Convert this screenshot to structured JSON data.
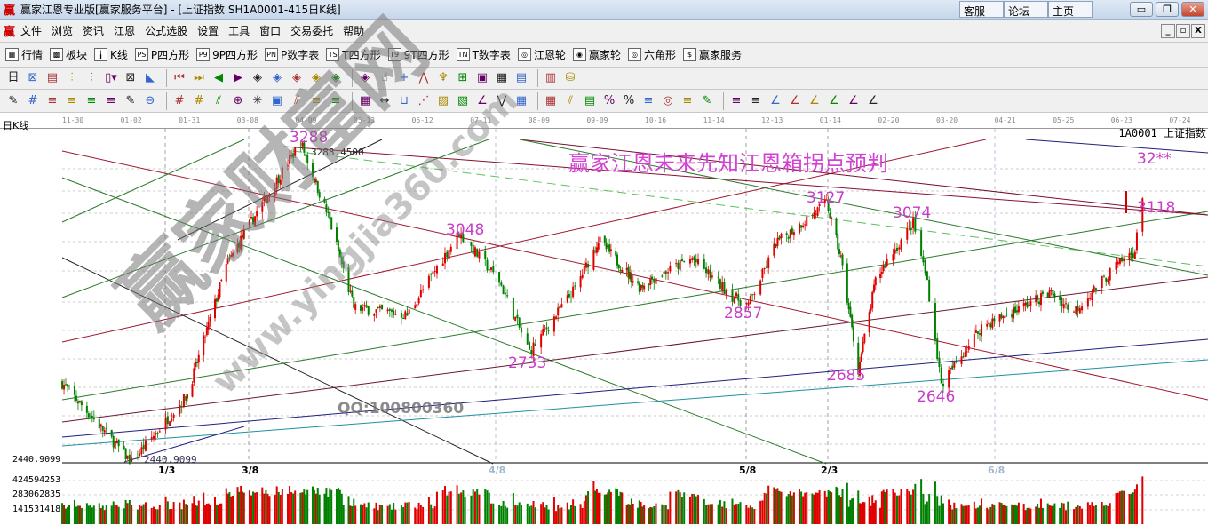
{
  "window": {
    "logo": "赢",
    "title": "赢家江恩专业版[赢家服务平台] - [上证指数  SH1A0001-415日K线]",
    "links": [
      "客服",
      "论坛",
      "主页"
    ],
    "controls": [
      "minimize",
      "restore",
      "close"
    ]
  },
  "menu": {
    "logo": "赢",
    "items": [
      "文件",
      "浏览",
      "资讯",
      "江恩",
      "公式选股",
      "设置",
      "工具",
      "窗口",
      "交易委托",
      "帮助"
    ],
    "mdi_controls": [
      "_",
      "▫",
      "X"
    ]
  },
  "toolbar1": [
    {
      "icon": "grid-icon",
      "glyph": "▦",
      "label": "行情"
    },
    {
      "icon": "blocks-icon",
      "glyph": "▩",
      "label": "板块"
    },
    {
      "icon": "candles-icon",
      "glyph": "╽",
      "label": "K线"
    },
    {
      "icon": "ps-icon",
      "glyph": "PS",
      "label": "P四方形"
    },
    {
      "icon": "p9-icon",
      "glyph": "P9",
      "label": "9P四方形"
    },
    {
      "icon": "pn-icon",
      "glyph": "PN",
      "label": "P数字表"
    },
    {
      "icon": "ts-icon",
      "glyph": "TS",
      "label": "T四方形"
    },
    {
      "icon": "t9-icon",
      "glyph": "T9",
      "label": "9T四方形"
    },
    {
      "icon": "tn-icon",
      "glyph": "TN",
      "label": "T数字表"
    },
    {
      "icon": "gann-wheel-icon",
      "glyph": "◎",
      "label": "江恩轮"
    },
    {
      "icon": "winner-wheel-icon",
      "glyph": "◉",
      "label": "赢家轮"
    },
    {
      "icon": "hexagon-icon",
      "glyph": "◎",
      "label": "六角形"
    },
    {
      "icon": "dollar-icon",
      "glyph": "$",
      "label": "赢家服务"
    }
  ],
  "toolbar2": [
    "日▾",
    "⊠",
    "▤",
    "⫶",
    "⫶",
    "▯▾",
    "⊠",
    "◣",
    "⏮",
    "⏭",
    "◀",
    "▶",
    "◈",
    "◈",
    "◈",
    "◈",
    "◈",
    "◈",
    "☝",
    "+",
    "⋀",
    "♆",
    "⊞",
    "▣",
    "▦",
    "▤",
    "▥",
    "⛁"
  ],
  "toolbar3": [
    "✎",
    "#",
    "≡",
    "≡",
    "≡",
    "≡",
    "✎",
    "⊖",
    "#",
    "#",
    "⫽",
    "⊕",
    "✳",
    "▣",
    "⫽",
    "≡",
    "≡",
    "▦",
    "↔",
    "⊔",
    "⋰",
    "▨",
    "▧",
    "∠",
    "⋁",
    "▦",
    "▦",
    "⫽",
    "▤",
    "%",
    "%",
    "≡",
    "◎",
    "≡",
    "✎",
    "≡",
    "≡",
    "∠",
    "∠",
    "∠",
    "∠",
    "∠",
    "∠"
  ],
  "chart": {
    "period_label": "日K线",
    "symbol": "1A0001  上证指数",
    "headline": "赢家江恩未来先知江恩箱拐点预判",
    "watermark_main": "赢家财富网",
    "watermark_url": "www.yingjia360.com",
    "qq_text": "QQ:100800360",
    "high_tag": "3288.4500",
    "low_tag": "2440.9099",
    "price_axis_low": "2440.9099",
    "volume_axis": [
      "424594253",
      "283062835",
      "141531418"
    ],
    "date_ticks": [
      "11-30",
      "01-02",
      "01-31",
      "03-08",
      "04-09",
      "05-13",
      "06-12",
      "07-11",
      "08-09",
      "09-09",
      "10-16",
      "11-14",
      "12-13",
      "01-14",
      "02-20",
      "03-20",
      "04-21",
      "05-25",
      "06-23",
      "07-24"
    ],
    "cycle_marks": [
      {
        "label": "1/3",
        "color": "#000000"
      },
      {
        "label": "3/8",
        "color": "#000000"
      },
      {
        "label": "4/8",
        "color": "#a0b8d0"
      },
      {
        "label": "5/8",
        "color": "#000000"
      },
      {
        "label": "2/3",
        "color": "#000000"
      },
      {
        "label": "6/8",
        "color": "#a0b8d0"
      }
    ],
    "pivot_labels": [
      "3288",
      "3048",
      "2733",
      "2857",
      "3127",
      "3074",
      "2685",
      "2646",
      "3118",
      "32**"
    ],
    "colors": {
      "up": "#e00000",
      "down": "#008000",
      "annotation": "#c83cc8",
      "headline": "#d342d3"
    }
  },
  "chart_data": {
    "type": "candlestick",
    "bars": 415,
    "ylim": [
      2440.9099,
      3288.45
    ],
    "pivots": [
      {
        "date": "2018-11-26",
        "price": 2650
      },
      {
        "date": "2019-01-04",
        "price": 2440.91
      },
      {
        "date": "2019-02-01",
        "price": 2620
      },
      {
        "date": "2019-02-25",
        "price": 2960
      },
      {
        "date": "2019-04-08",
        "price": 3288.45
      },
      {
        "date": "2019-04-25",
        "price": 3080
      },
      {
        "date": "2019-05-09",
        "price": 2850
      },
      {
        "date": "2019-06-06",
        "price": 2830
      },
      {
        "date": "2019-07-02",
        "price": 3048
      },
      {
        "date": "2019-07-22",
        "price": 2920
      },
      {
        "date": "2019-08-06",
        "price": 2733
      },
      {
        "date": "2019-08-30",
        "price": 2900
      },
      {
        "date": "2019-09-12",
        "price": 3030
      },
      {
        "date": "2019-10-08",
        "price": 2905
      },
      {
        "date": "2019-11-05",
        "price": 2980
      },
      {
        "date": "2019-11-25",
        "price": 2880
      },
      {
        "date": "2019-12-03",
        "price": 2857
      },
      {
        "date": "2019-12-17",
        "price": 3020
      },
      {
        "date": "2020-01-14",
        "price": 3127
      },
      {
        "date": "2020-01-23",
        "price": 2980
      },
      {
        "date": "2020-02-03",
        "price": 2685
      },
      {
        "date": "2020-02-14",
        "price": 2920
      },
      {
        "date": "2020-03-05",
        "price": 3074
      },
      {
        "date": "2020-03-12",
        "price": 2920
      },
      {
        "date": "2020-03-19",
        "price": 2646
      },
      {
        "date": "2020-04-10",
        "price": 2800
      },
      {
        "date": "2020-05-20",
        "price": 2890
      },
      {
        "date": "2020-06-01",
        "price": 2840
      },
      {
        "date": "2020-06-22",
        "price": 2960
      },
      {
        "date": "2020-07-02",
        "price": 3000
      },
      {
        "date": "2020-07-06",
        "price": 3150
      }
    ],
    "volume_ylim": [
      0,
      480000000
    ]
  }
}
